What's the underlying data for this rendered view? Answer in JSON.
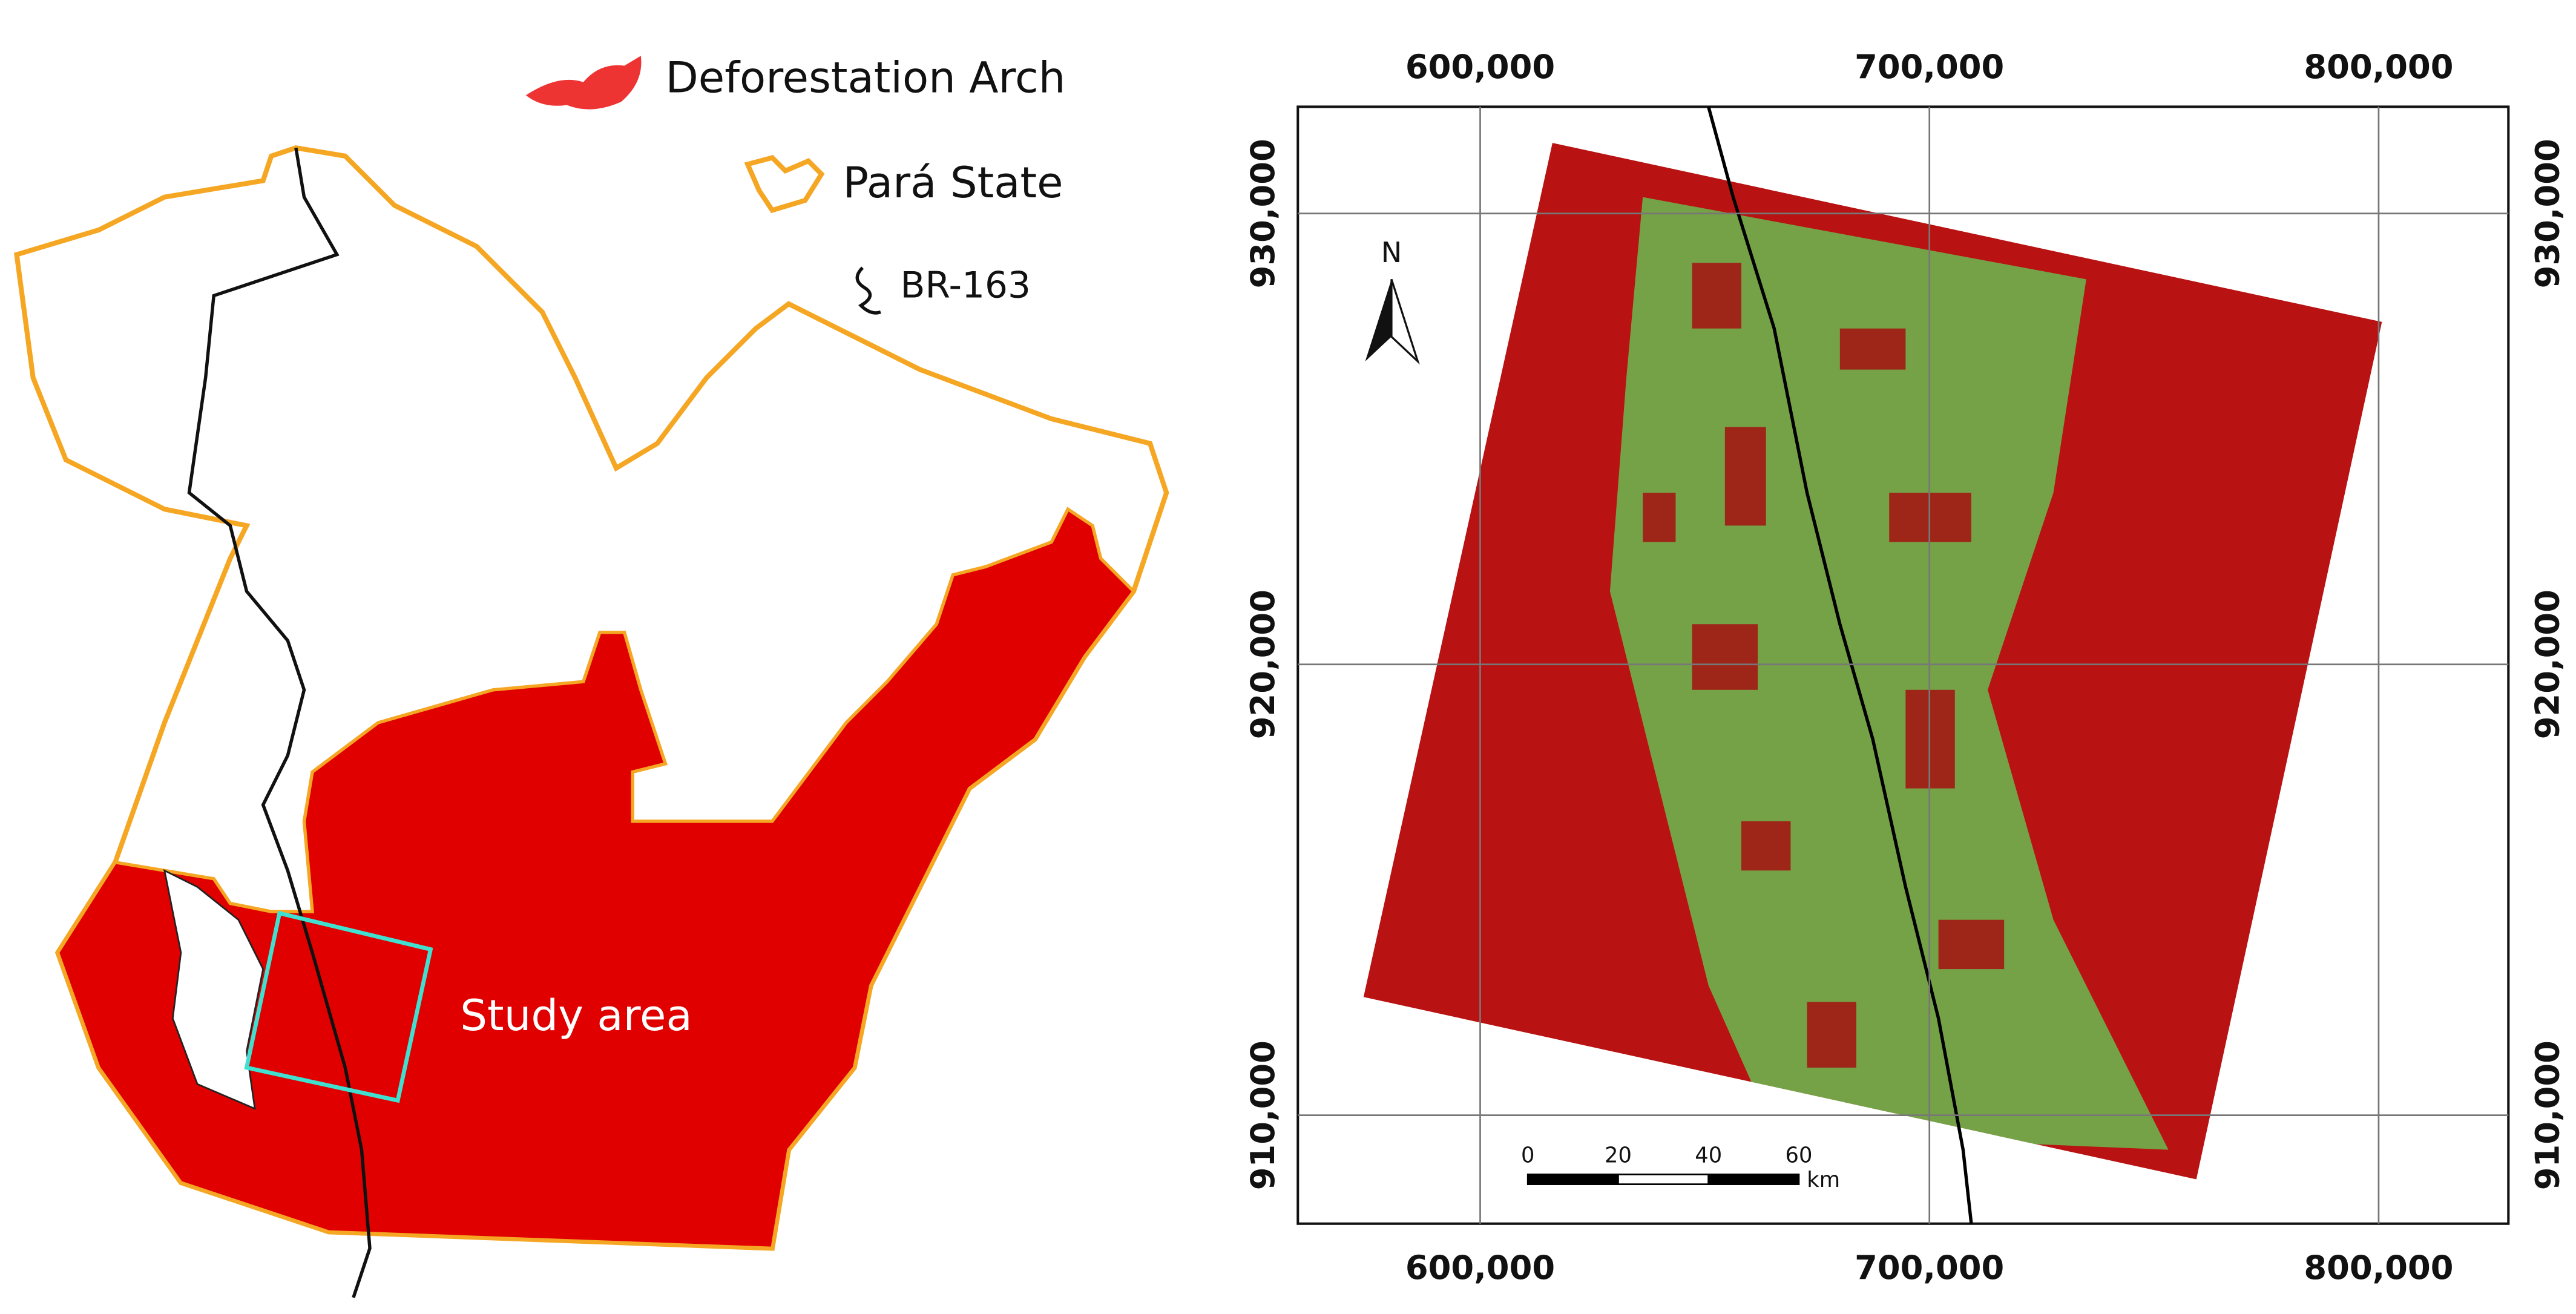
{
  "left_map": {
    "legend": [
      "Deforestation Arch",
      "Pará State",
      "BR-163"
    ],
    "label": "Study area"
  },
  "right_map": {
    "xticks": [
      {
        "value": 600000,
        "label": "600,000"
      },
      {
        "value": 700000,
        "label": "700,000"
      },
      {
        "value": 800000,
        "label": "800,000"
      }
    ],
    "yticks": [
      {
        "value": 910000,
        "label": "910,000"
      },
      {
        "value": 920000,
        "label": "920,000"
      },
      {
        "value": 930000,
        "label": "930,000"
      }
    ],
    "north": "N",
    "scale_bar": {
      "ticks": [
        0,
        20,
        40,
        60
      ],
      "unit": "km"
    }
  }
}
